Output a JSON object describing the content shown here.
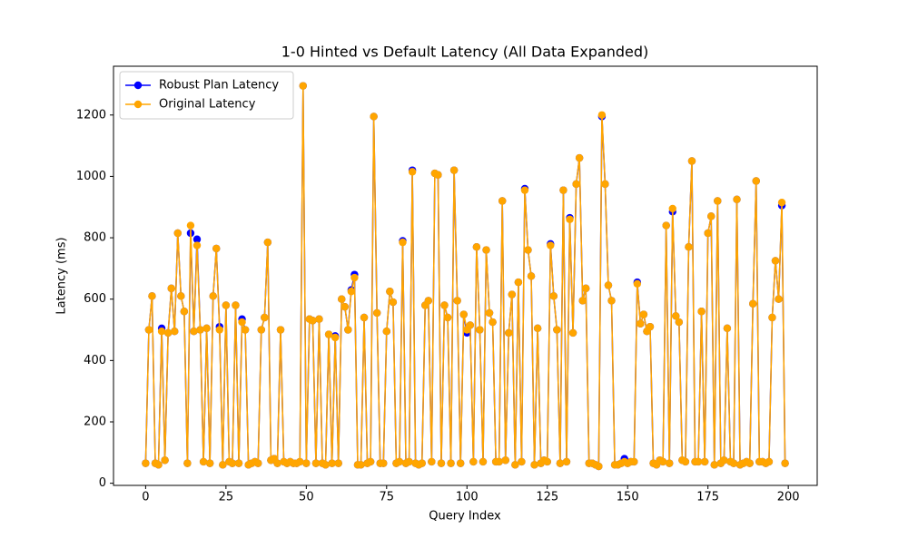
{
  "chart_data": {
    "type": "line",
    "title": "1-0 Hinted vs Default Latency (All Data Expanded)",
    "x_label": "Query Index",
    "y_label": "Latency (ms)",
    "x": [
      0,
      1,
      2,
      3,
      4,
      5,
      6,
      7,
      8,
      9,
      10,
      11,
      12,
      13,
      14,
      15,
      16,
      17,
      18,
      19,
      20,
      21,
      22,
      23,
      24,
      25,
      26,
      27,
      28,
      29,
      30,
      31,
      32,
      33,
      34,
      35,
      36,
      37,
      38,
      39,
      40,
      41,
      42,
      43,
      44,
      45,
      46,
      47,
      48,
      49,
      50,
      51,
      52,
      53,
      54,
      55,
      56,
      57,
      58,
      59,
      60,
      61,
      62,
      63,
      64,
      65,
      66,
      67,
      68,
      69,
      70,
      71,
      72,
      73,
      74,
      75,
      76,
      77,
      78,
      79,
      80,
      81,
      82,
      83,
      84,
      85,
      86,
      87,
      88,
      89,
      90,
      91,
      92,
      93,
      94,
      95,
      96,
      97,
      98,
      99,
      100,
      101,
      102,
      103,
      104,
      105,
      106,
      107,
      108,
      109,
      110,
      111,
      112,
      113,
      114,
      115,
      116,
      117,
      118,
      119,
      120,
      121,
      122,
      123,
      124,
      125,
      126,
      127,
      128,
      129,
      130,
      131,
      132,
      133,
      134,
      135,
      136,
      137,
      138,
      139,
      140,
      141,
      142,
      143,
      144,
      145,
      146,
      147,
      148,
      149,
      150,
      151,
      152,
      153,
      154,
      155,
      156,
      157,
      158,
      159,
      160,
      161,
      162,
      163,
      164,
      165,
      166,
      167,
      168,
      169,
      170,
      171,
      172,
      173,
      174,
      175,
      176,
      177,
      178,
      179,
      180,
      181,
      182,
      183,
      184,
      185,
      186,
      187,
      188,
      189,
      190,
      191,
      192,
      193,
      194,
      195,
      196,
      197,
      198,
      199
    ],
    "series": [
      {
        "name": "Robust Plan Latency",
        "color": "#0000ff",
        "values": [
          65,
          500,
          610,
          65,
          60,
          505,
          75,
          490,
          635,
          495,
          815,
          610,
          560,
          65,
          815,
          495,
          795,
          500,
          70,
          505,
          65,
          610,
          765,
          510,
          60,
          580,
          70,
          65,
          580,
          65,
          535,
          500,
          60,
          65,
          70,
          65,
          500,
          540,
          785,
          75,
          80,
          65,
          500,
          70,
          65,
          70,
          65,
          65,
          70,
          1295,
          65,
          535,
          530,
          65,
          535,
          65,
          60,
          485,
          65,
          480,
          65,
          600,
          575,
          500,
          630,
          680,
          60,
          60,
          540,
          65,
          70,
          1195,
          555,
          65,
          65,
          495,
          625,
          590,
          65,
          70,
          790,
          65,
          70,
          1020,
          65,
          60,
          65,
          580,
          595,
          70,
          1010,
          1005,
          65,
          580,
          540,
          65,
          1020,
          595,
          65,
          550,
          490,
          515,
          70,
          770,
          500,
          70,
          760,
          555,
          525,
          70,
          70,
          920,
          75,
          490,
          615,
          60,
          655,
          70,
          960,
          760,
          675,
          60,
          505,
          65,
          75,
          70,
          780,
          610,
          500,
          65,
          955,
          70,
          865,
          490,
          975,
          1060,
          595,
          635,
          65,
          65,
          60,
          55,
          1195,
          975,
          645,
          595,
          60,
          60,
          65,
          80,
          65,
          70,
          70,
          655,
          520,
          550,
          495,
          510,
          65,
          60,
          75,
          70,
          840,
          65,
          885,
          545,
          525,
          75,
          70,
          770,
          1050,
          70,
          70,
          560,
          70,
          815,
          870,
          60,
          920,
          65,
          75,
          505,
          70,
          65,
          925,
          60,
          65,
          70,
          65,
          585,
          985,
          70,
          70,
          65,
          70,
          540,
          725,
          600,
          905,
          65
        ]
      },
      {
        "name": "Original Latency",
        "color": "#ffa500",
        "values": [
          65,
          500,
          610,
          65,
          60,
          495,
          75,
          490,
          635,
          495,
          815,
          610,
          560,
          65,
          840,
          495,
          775,
          500,
          70,
          505,
          65,
          610,
          765,
          500,
          60,
          580,
          70,
          65,
          580,
          65,
          525,
          500,
          60,
          65,
          70,
          65,
          500,
          540,
          785,
          75,
          80,
          65,
          500,
          70,
          65,
          70,
          65,
          65,
          70,
          1295,
          65,
          535,
          530,
          65,
          535,
          65,
          60,
          485,
          65,
          475,
          65,
          600,
          575,
          500,
          625,
          670,
          60,
          60,
          540,
          65,
          70,
          1195,
          555,
          65,
          65,
          495,
          625,
          590,
          65,
          70,
          785,
          65,
          70,
          1015,
          65,
          60,
          65,
          580,
          595,
          70,
          1010,
          1005,
          65,
          580,
          540,
          65,
          1020,
          595,
          65,
          550,
          500,
          515,
          70,
          770,
          500,
          70,
          760,
          555,
          525,
          70,
          70,
          920,
          75,
          490,
          615,
          60,
          655,
          70,
          955,
          760,
          675,
          60,
          505,
          65,
          75,
          70,
          775,
          610,
          500,
          65,
          955,
          70,
          860,
          490,
          975,
          1060,
          595,
          635,
          65,
          65,
          60,
          55,
          1200,
          975,
          645,
          595,
          60,
          60,
          65,
          70,
          65,
          70,
          70,
          650,
          520,
          550,
          495,
          510,
          65,
          60,
          75,
          70,
          840,
          65,
          895,
          545,
          525,
          75,
          70,
          770,
          1050,
          70,
          70,
          560,
          70,
          815,
          870,
          60,
          920,
          65,
          75,
          505,
          70,
          65,
          925,
          60,
          65,
          70,
          65,
          585,
          985,
          70,
          70,
          65,
          70,
          540,
          725,
          600,
          915,
          65
        ]
      }
    ],
    "xlim": [
      -10,
      209
    ],
    "xticks": [
      0,
      25,
      50,
      75,
      100,
      125,
      150,
      175,
      200
    ],
    "ylim": [
      -7,
      1359
    ],
    "yticks": [
      0,
      200,
      400,
      600,
      800,
      1000,
      1200
    ],
    "legend": "upper left",
    "grid": false
  }
}
